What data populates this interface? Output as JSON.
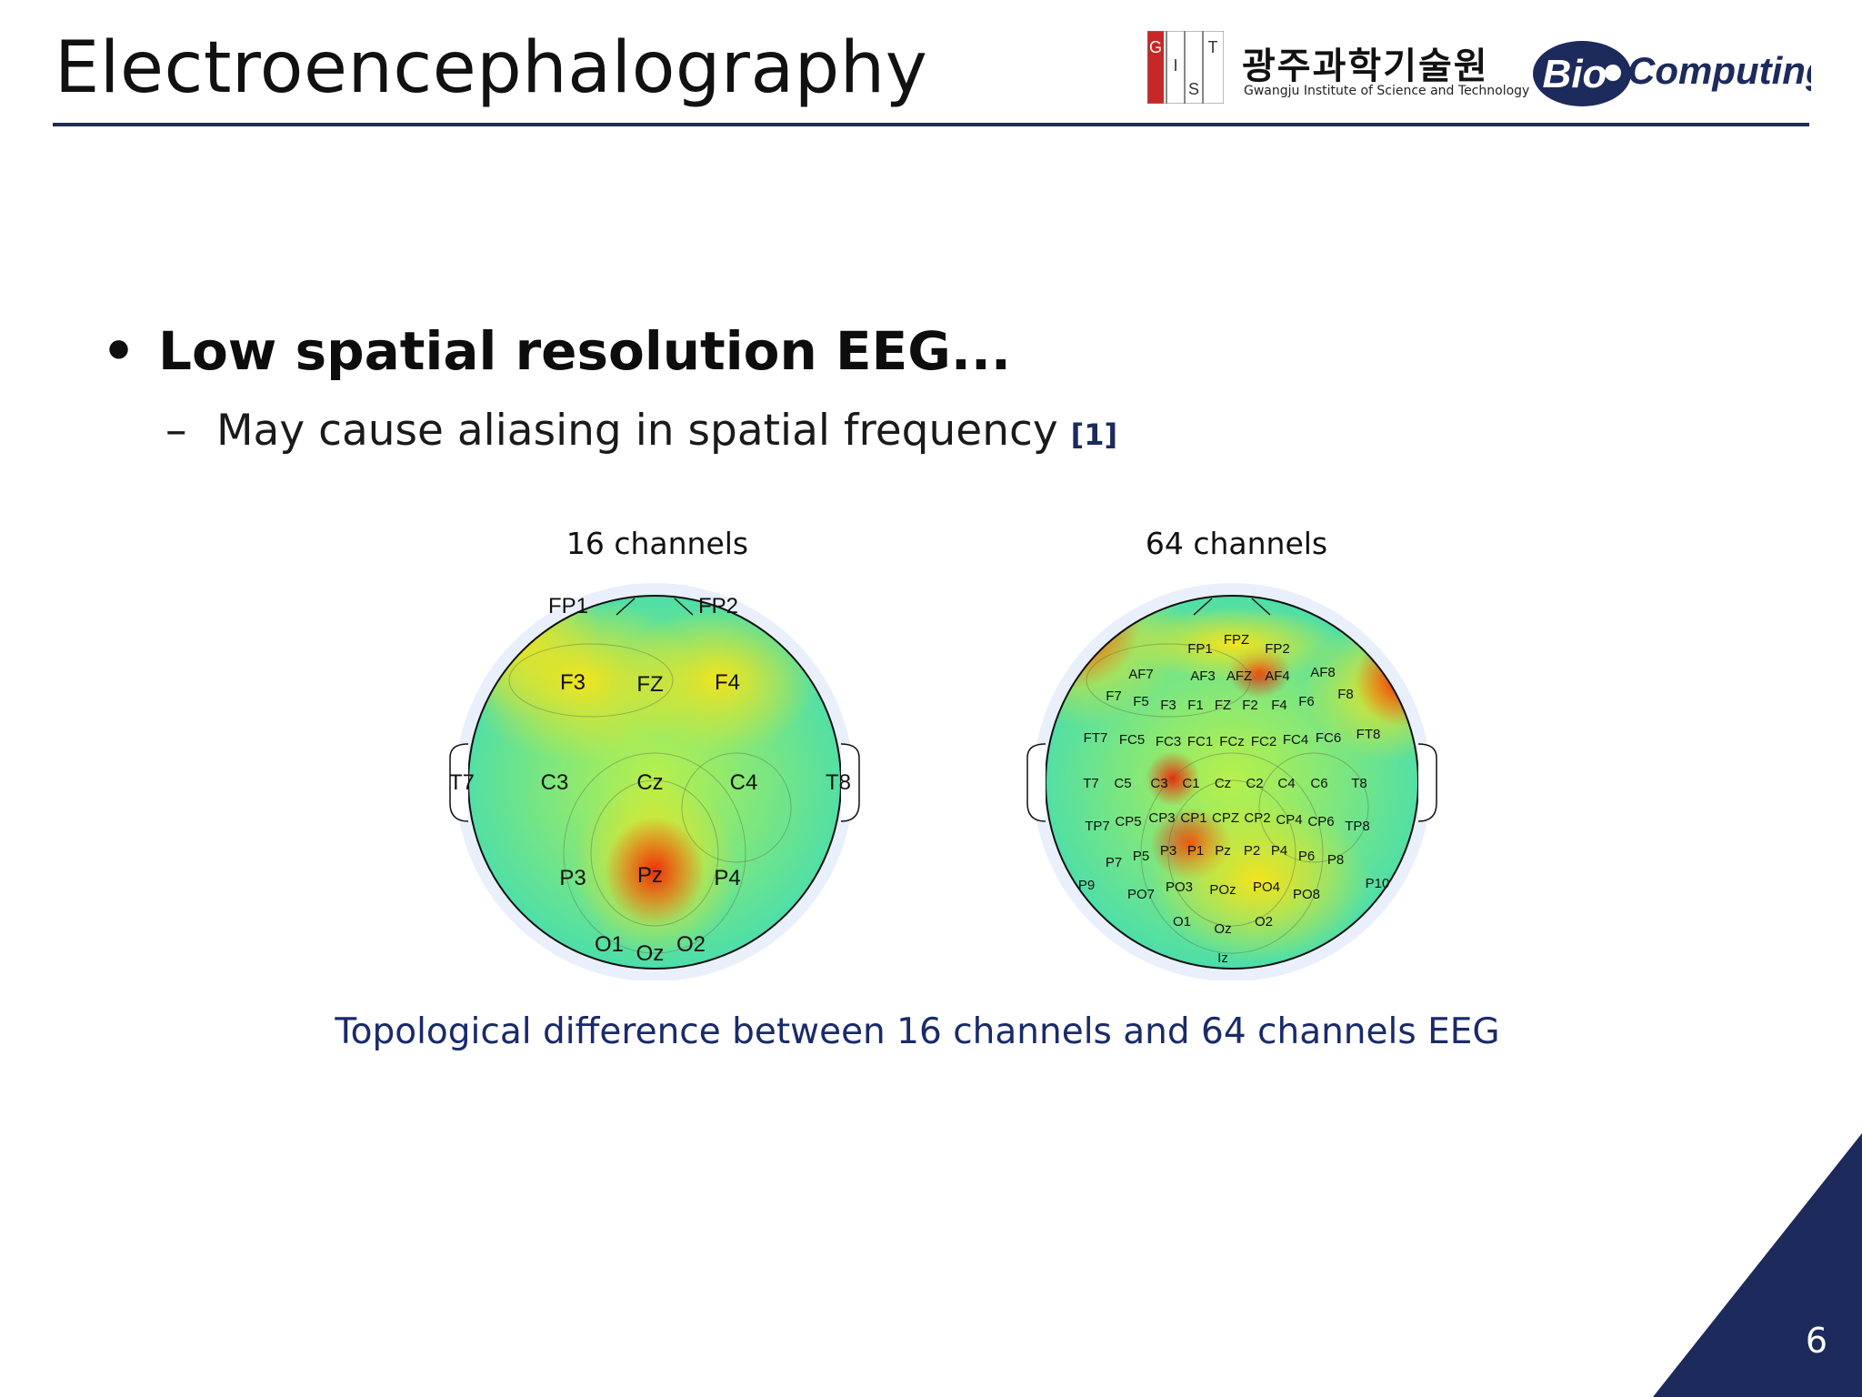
{
  "header": {
    "title": "Electroencephalography",
    "logo_gist_letters": [
      "G",
      "I",
      "S",
      "T"
    ],
    "logo_gist_korean": "광주과학기술원",
    "logo_gist_english": "Gwangju Institute of Science and Technology",
    "logo_bio_prefix": "Bio",
    "logo_bio_suffix": "Computing"
  },
  "content": {
    "bullet": "•",
    "heading": "Low spatial resolution EEG...",
    "dash": "–",
    "sub_point": "May cause aliasing in spatial frequency",
    "reference": "[1]"
  },
  "figure": {
    "left_title": "16 channels",
    "right_title": "64 channels",
    "caption": "Topological difference between 16 channels and 64 channels EEG",
    "left_electrodes": [
      "FP1",
      "FP2",
      "F3",
      "FZ",
      "F4",
      "T7",
      "C3",
      "Cz",
      "C4",
      "T8",
      "P3",
      "Pz",
      "P4",
      "O1",
      "Oz",
      "O2"
    ],
    "right_electrodes": [
      "FPZ",
      "FP1",
      "FP2",
      "AF7",
      "AF3",
      "AFZ",
      "AF4",
      "AF8",
      "F7",
      "F5",
      "F3",
      "F1",
      "FZ",
      "F2",
      "F4",
      "F6",
      "F8",
      "FT7",
      "FC5",
      "FC3",
      "FC1",
      "FCz",
      "FC2",
      "FC4",
      "FC6",
      "FT8",
      "T7",
      "C5",
      "C3",
      "C1",
      "Cz",
      "C2",
      "C4",
      "C6",
      "T8",
      "TP7",
      "CP5",
      "CP3",
      "CP1",
      "CPZ",
      "CP2",
      "CP4",
      "CP6",
      "TP8",
      "P7",
      "P5",
      "P3",
      "P1",
      "Pz",
      "P2",
      "P4",
      "P6",
      "P8",
      "P9",
      "P10",
      "PO7",
      "PO3",
      "POz",
      "PO4",
      "PO8",
      "O1",
      "Oz",
      "O2",
      "Iz"
    ],
    "colors": {
      "low": "#2fd9c4",
      "mid": "#b8f04a",
      "high": "#f2e41c",
      "peak": "#e8300c"
    }
  },
  "footer": {
    "page_number": "6"
  },
  "colors": {
    "accent": "#1d2a5c",
    "caption": "#1a2a6a"
  }
}
